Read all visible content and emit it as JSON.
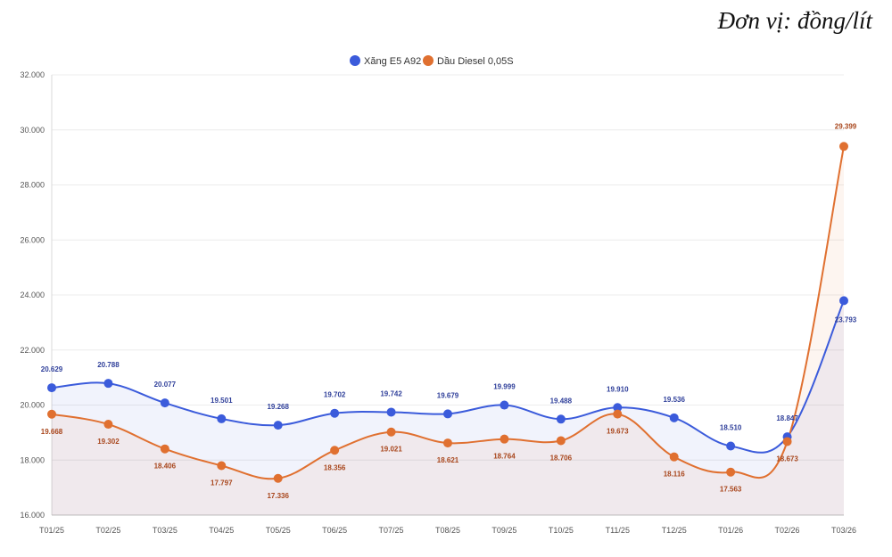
{
  "unit_note": "Đơn vị: đồng/lít",
  "chart_data": {
    "type": "line",
    "title": "",
    "xlabel": "",
    "ylabel": "",
    "ylim": [
      16000,
      32000
    ],
    "y_ticks": [
      "16.000",
      "18.000",
      "20.000",
      "22.000",
      "24.000",
      "26.000",
      "28.000",
      "30.000",
      "32.000"
    ],
    "y_tick_values": [
      16000,
      18000,
      20000,
      22000,
      24000,
      26000,
      28000,
      30000,
      32000
    ],
    "grid": true,
    "legend_position": "top-center",
    "categories": [
      "T01/25",
      "T02/25",
      "T03/25",
      "T04/25",
      "T05/25",
      "T06/25",
      "T07/25",
      "T08/25",
      "T09/25",
      "T10/25",
      "T11/25",
      "T12/25",
      "T01/26",
      "T02/26",
      "T03/26"
    ],
    "series": [
      {
        "name": "Xăng E5 A92",
        "color": "#3b5bdb",
        "values": [
          20629,
          20788,
          20077,
          19501,
          19268,
          19702,
          19742,
          19679,
          19999,
          19488,
          19910,
          19536,
          18510,
          18847,
          23793
        ],
        "labels": [
          "20.629",
          "20.788",
          "20.077",
          "19.501",
          "19.268",
          "19.702",
          "19.742",
          "19.679",
          "19.999",
          "19.488",
          "19.910",
          "19.536",
          "18.510",
          "18.847",
          "23.793"
        ]
      },
      {
        "name": "Dầu Diesel 0,05S",
        "color": "#e07030",
        "values": [
          19668,
          19302,
          18406,
          17797,
          17336,
          18356,
          19021,
          18621,
          18764,
          18706,
          19673,
          18116,
          17563,
          18673,
          29399
        ],
        "labels": [
          "19.668",
          "19.302",
          "18.406",
          "17.797",
          "17.336",
          "18.356",
          "19.021",
          "18.621",
          "18.764",
          "18.706",
          "19.673",
          "18.116",
          "17.563",
          "18.673",
          "29.399"
        ]
      }
    ]
  }
}
